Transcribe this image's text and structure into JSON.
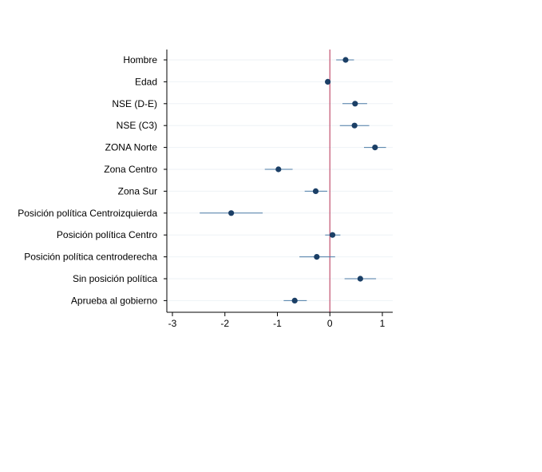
{
  "chart_data": {
    "type": "scatter",
    "subtype": "coefficient-plot",
    "orientation": "horizontal",
    "title": "",
    "xlabel": "",
    "ylabel": "",
    "xlim": [
      -3,
      1
    ],
    "x_ticks": [
      -3,
      -2,
      -1,
      0,
      1
    ],
    "x_tick_labels": [
      "-3",
      "-2",
      "-1",
      "0",
      "1"
    ],
    "reference_line": {
      "x": 0,
      "color": "#c0506e"
    },
    "colors": {
      "point": "#1b3f66",
      "ci": "#4a7aa6",
      "axis": "#000000",
      "grid": "#eef2f6"
    },
    "grid": true,
    "legend": "none",
    "categories": [
      "Hombre",
      "Edad",
      "NSE (D-E)",
      "NSE (C3)",
      "ZONA Norte",
      "Zona Centro",
      "Zona Sur",
      "Posición política Centroizquierda",
      "Posición política Centro",
      "Posición política centroderecha",
      "Sin posición política",
      "Aprueba al gobierno"
    ],
    "estimates": [
      0.3,
      -0.04,
      0.48,
      0.47,
      0.86,
      -0.98,
      -0.27,
      -1.88,
      0.05,
      -0.25,
      0.58,
      -0.67
    ],
    "ci_low": [
      0.12,
      -0.06,
      0.24,
      0.19,
      0.65,
      -1.24,
      -0.48,
      -2.48,
      -0.09,
      -0.58,
      0.28,
      -0.88
    ],
    "ci_high": [
      0.46,
      -0.02,
      0.71,
      0.75,
      1.07,
      -0.71,
      -0.05,
      -1.28,
      0.2,
      0.1,
      0.88,
      -0.44
    ]
  }
}
